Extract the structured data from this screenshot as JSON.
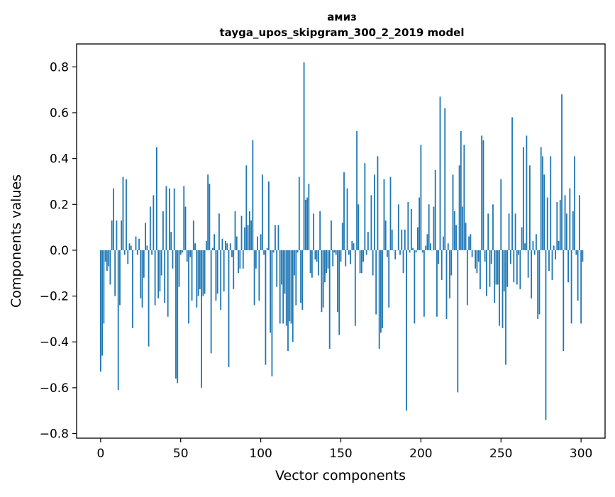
{
  "chart_data": {
    "type": "bar",
    "title_line1": "амиз",
    "title_line2": "tayga_upos_skipgram_300_2_2019 model",
    "xlabel": "Vector components",
    "ylabel": "Components values",
    "xlim": [
      -15,
      315
    ],
    "ylim": [
      -0.82,
      0.9
    ],
    "x_ticks": [
      0,
      50,
      100,
      150,
      200,
      250,
      300
    ],
    "x_tick_labels": [
      "0",
      "50",
      "100",
      "150",
      "200",
      "250",
      "300"
    ],
    "y_ticks": [
      -0.8,
      -0.6,
      -0.4,
      -0.2,
      0.0,
      0.2,
      0.4,
      0.6,
      0.8
    ],
    "y_tick_labels": [
      "−0.8",
      "−0.6",
      "−0.4",
      "−0.2",
      "0.0",
      "0.2",
      "0.4",
      "0.6",
      "0.8"
    ],
    "bar_color": "#1f77b4",
    "grid": false,
    "values": [
      -0.53,
      -0.46,
      -0.32,
      -0.05,
      -0.09,
      -0.07,
      -0.15,
      0.13,
      0.27,
      -0.2,
      0.13,
      -0.61,
      -0.24,
      0.13,
      0.32,
      -0.02,
      0.31,
      -0.06,
      0.03,
      0.02,
      -0.34,
      0.0,
      0.06,
      -0.02,
      0.05,
      -0.21,
      -0.25,
      -0.12,
      0.12,
      0.02,
      -0.42,
      0.19,
      -0.02,
      0.24,
      -0.24,
      0.45,
      -0.21,
      -0.18,
      -0.11,
      0.17,
      -0.23,
      0.28,
      -0.29,
      0.27,
      0.08,
      -0.08,
      0.27,
      -0.56,
      -0.58,
      -0.16,
      -0.02,
      -0.01,
      0.28,
      0.19,
      -0.05,
      -0.32,
      -0.03,
      -0.22,
      0.13,
      0.03,
      -0.25,
      -0.2,
      -0.17,
      -0.6,
      -0.2,
      -0.19,
      0.04,
      0.33,
      0.29,
      -0.45,
      0.01,
      0.07,
      -0.22,
      -0.19,
      0.16,
      -0.26,
      0.05,
      -0.18,
      0.04,
      0.03,
      -0.51,
      0.03,
      -0.03,
      -0.17,
      0.17,
      0.06,
      -0.1,
      -0.08,
      0.15,
      -0.08,
      0.1,
      0.37,
      0.11,
      0.17,
      0.13,
      0.48,
      -0.24,
      -0.08,
      0.06,
      -0.22,
      0.07,
      0.33,
      -0.02,
      -0.5,
      0.01,
      0.3,
      -0.36,
      -0.55,
      -0.01,
      0.11,
      -0.16,
      0.11,
      -0.32,
      -0.15,
      -0.32,
      -0.19,
      -0.33,
      -0.44,
      -0.31,
      -0.32,
      -0.4,
      -0.11,
      -0.24,
      -0.01,
      0.32,
      -0.23,
      -0.26,
      0.82,
      0.22,
      0.23,
      0.29,
      -0.1,
      -0.12,
      0.16,
      -0.04,
      -0.05,
      -0.11,
      0.17,
      -0.27,
      -0.25,
      -0.14,
      -0.1,
      -0.08,
      -0.43,
      0.13,
      -0.07,
      -0.01,
      -0.02,
      -0.27,
      -0.37,
      -0.05,
      0.12,
      0.34,
      -0.07,
      0.27,
      -0.02,
      -0.06,
      0.04,
      0.03,
      -0.33,
      0.52,
      0.2,
      -0.1,
      -0.1,
      -0.05,
      0.38,
      -0.02,
      0.08,
      0.0,
      0.24,
      -0.11,
      0.33,
      -0.28,
      0.41,
      -0.43,
      -0.36,
      -0.34,
      0.31,
      0.13,
      -0.03,
      -0.25,
      0.32,
      0.09,
      0.0,
      -0.04,
      0.0,
      0.2,
      -0.02,
      0.09,
      -0.1,
      0.09,
      -0.7,
      0.21,
      -0.01,
      0.18,
      0.01,
      -0.32,
      -0.01,
      0.1,
      0.23,
      0.46,
      -0.01,
      -0.29,
      0.02,
      0.07,
      0.2,
      0.03,
      0.0,
      0.19,
      0.35,
      -0.29,
      -0.06,
      0.67,
      -0.13,
      0.06,
      0.62,
      -0.3,
      0.03,
      -0.21,
      -0.11,
      0.33,
      0.17,
      0.11,
      -0.62,
      0.37,
      0.52,
      0.19,
      0.46,
      0.12,
      -0.24,
      0.06,
      0.07,
      -0.03,
      0.0,
      -0.08,
      -0.1,
      -0.05,
      -0.17,
      0.5,
      0.48,
      -0.05,
      -0.2,
      0.16,
      -0.16,
      -0.06,
      0.2,
      -0.23,
      -0.15,
      -0.15,
      -0.33,
      0.31,
      -0.34,
      -0.18,
      -0.5,
      -0.16,
      0.16,
      -0.06,
      0.58,
      -0.14,
      0.16,
      -0.15,
      -0.02,
      -0.17,
      0.1,
      0.45,
      0.03,
      0.5,
      -0.12,
      0.37,
      -0.21,
      0.04,
      -0.02,
      0.07,
      -0.3,
      -0.28,
      0.45,
      0.41,
      0.33,
      -0.74,
      0.23,
      -0.09,
      0.41,
      -0.13,
      0.02,
      -0.04,
      0.21,
      0.04,
      0.22,
      0.68,
      -0.44,
      0.24,
      0.16,
      -0.14,
      0.27,
      -0.32,
      0.17,
      0.41,
      -0.02,
      -0.22,
      0.24,
      -0.32,
      -0.05
    ]
  }
}
